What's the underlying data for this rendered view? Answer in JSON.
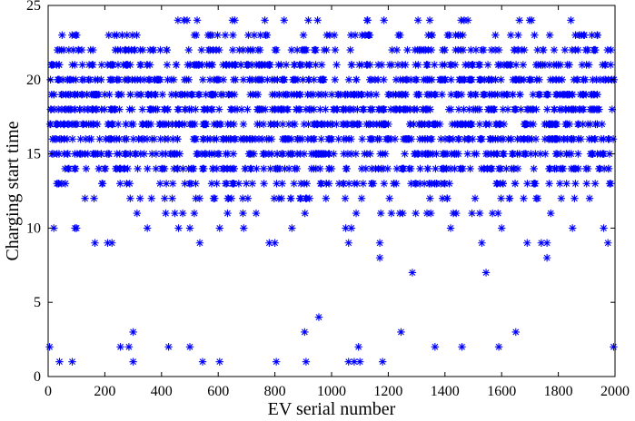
{
  "chart_data": {
    "type": "scatter",
    "title": "",
    "xlabel": "EV serial number",
    "ylabel": "Charging start time",
    "xlim": [
      0,
      2000
    ],
    "ylim": [
      0,
      25
    ],
    "xticks": [
      0,
      200,
      400,
      600,
      800,
      1000,
      1200,
      1400,
      1600,
      1800,
      2000
    ],
    "yticks": [
      0,
      5,
      10,
      15,
      20,
      25
    ],
    "marker": "asterisk",
    "grid": false,
    "legend": "none",
    "color": "#0000FF",
    "points": [
      {
        "x": 5,
        "y": 2
      },
      {
        "x": 40,
        "y": 1
      },
      {
        "x": 85,
        "y": 1
      },
      {
        "x": 255,
        "y": 2
      },
      {
        "x": 285,
        "y": 2
      },
      {
        "x": 300,
        "y": 3
      },
      {
        "x": 300,
        "y": 1
      },
      {
        "x": 425,
        "y": 2
      },
      {
        "x": 500,
        "y": 2
      },
      {
        "x": 545,
        "y": 1
      },
      {
        "x": 605,
        "y": 1
      },
      {
        "x": 805,
        "y": 1
      },
      {
        "x": 905,
        "y": 3
      },
      {
        "x": 910,
        "y": 1
      },
      {
        "x": 955,
        "y": 4
      },
      {
        "x": 1060,
        "y": 1
      },
      {
        "x": 1080,
        "y": 1
      },
      {
        "x": 1095,
        "y": 2
      },
      {
        "x": 1100,
        "y": 1
      },
      {
        "x": 1180,
        "y": 1
      },
      {
        "x": 1245,
        "y": 3
      },
      {
        "x": 1285,
        "y": 7
      },
      {
        "x": 1365,
        "y": 2
      },
      {
        "x": 1460,
        "y": 2
      },
      {
        "x": 1545,
        "y": 7
      },
      {
        "x": 1590,
        "y": 2
      },
      {
        "x": 1650,
        "y": 3
      },
      {
        "x": 1760,
        "y": 8
      },
      {
        "x": 1995,
        "y": 2
      },
      {
        "x": 1170,
        "y": 8
      },
      {
        "x": 1170,
        "y": 9
      },
      {
        "x": 20,
        "y": 10
      },
      {
        "x": 95,
        "y": 10
      },
      {
        "x": 100,
        "y": 10
      },
      {
        "x": 165,
        "y": 9
      },
      {
        "x": 210,
        "y": 9
      },
      {
        "x": 225,
        "y": 9
      },
      {
        "x": 350,
        "y": 10
      },
      {
        "x": 460,
        "y": 10
      },
      {
        "x": 500,
        "y": 10
      },
      {
        "x": 535,
        "y": 9
      },
      {
        "x": 605,
        "y": 10
      },
      {
        "x": 690,
        "y": 10
      },
      {
        "x": 780,
        "y": 9
      },
      {
        "x": 800,
        "y": 9
      },
      {
        "x": 860,
        "y": 10
      },
      {
        "x": 1050,
        "y": 10
      },
      {
        "x": 1060,
        "y": 9
      },
      {
        "x": 1070,
        "y": 10
      },
      {
        "x": 1420,
        "y": 10
      },
      {
        "x": 1530,
        "y": 9
      },
      {
        "x": 1600,
        "y": 10
      },
      {
        "x": 1690,
        "y": 9
      },
      {
        "x": 1740,
        "y": 9
      },
      {
        "x": 1760,
        "y": 9
      },
      {
        "x": 1850,
        "y": 10
      },
      {
        "x": 1960,
        "y": 10
      },
      {
        "x": 1975,
        "y": 9
      }
    ],
    "dense_ranges": [
      {
        "y": 11,
        "x": [
          130,
          1780
        ],
        "count": 24
      },
      {
        "y": 12,
        "x": [
          120,
          1960
        ],
        "count": 45
      },
      {
        "y": 13,
        "x": [
          20,
          1990
        ],
        "count": 90
      },
      {
        "y": 14,
        "x": [
          10,
          1995
        ],
        "count": 140
      },
      {
        "y": 15,
        "x": [
          5,
          1995
        ],
        "count": 170
      },
      {
        "y": 16,
        "x": [
          5,
          1998
        ],
        "count": 190
      },
      {
        "y": 17,
        "x": [
          5,
          1998
        ],
        "count": 200
      },
      {
        "y": 18,
        "x": [
          5,
          1998
        ],
        "count": 200
      },
      {
        "y": 19,
        "x": [
          5,
          1998
        ],
        "count": 185
      },
      {
        "y": 20,
        "x": [
          5,
          1998
        ],
        "count": 180
      },
      {
        "y": 21,
        "x": [
          5,
          1995
        ],
        "count": 150
      },
      {
        "y": 22,
        "x": [
          30,
          1995
        ],
        "count": 110
      },
      {
        "y": 23,
        "x": [
          15,
          1995
        ],
        "count": 60
      },
      {
        "y": 24,
        "x": [
          420,
          1865
        ],
        "count": 22
      }
    ]
  }
}
